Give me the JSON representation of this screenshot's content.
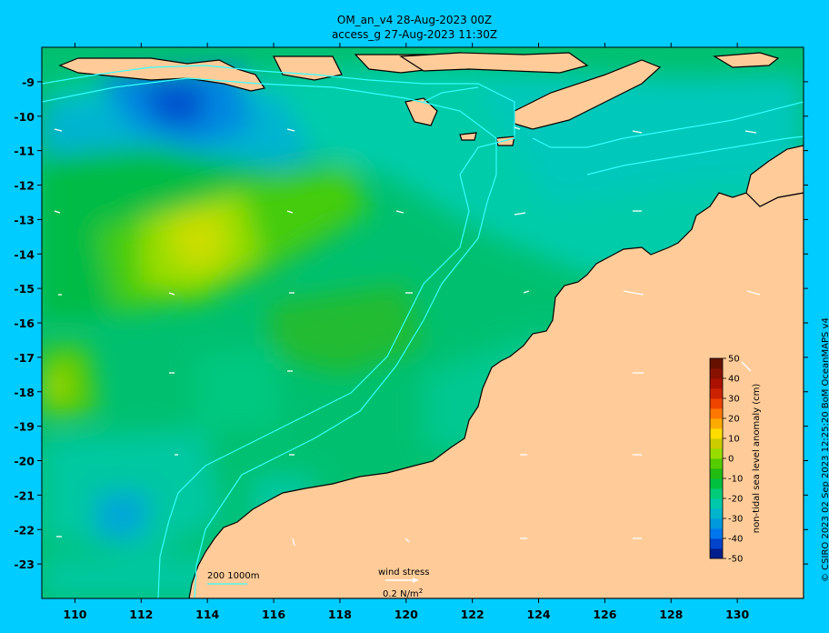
{
  "title_line1": "OM_an_v4  28-Aug-2023 00Z",
  "title_line2": "access_g 27-Aug-2023 11:30Z",
  "credit": "© CSIRO 2023   02 Sep 2023 12:25:20 BoM OceanMAPS v4",
  "colors": {
    "background": "#00ccff",
    "land": "#ffcc99",
    "contour": "#33ffff"
  },
  "x_axis": {
    "ticks": [
      {
        "value": 110,
        "label": "110"
      },
      {
        "value": 112,
        "label": "112"
      },
      {
        "value": 114,
        "label": "114"
      },
      {
        "value": 116,
        "label": "116"
      },
      {
        "value": 118,
        "label": "118"
      },
      {
        "value": 120,
        "label": "120"
      },
      {
        "value": 122,
        "label": "122"
      },
      {
        "value": 124,
        "label": "124"
      },
      {
        "value": 126,
        "label": "126"
      },
      {
        "value": 128,
        "label": "128"
      },
      {
        "value": 130,
        "label": "130"
      }
    ],
    "range": [
      109,
      132
    ]
  },
  "y_axis": {
    "ticks": [
      {
        "value": -9,
        "label": "-9"
      },
      {
        "value": -10,
        "label": "-10"
      },
      {
        "value": -11,
        "label": "-11"
      },
      {
        "value": -12,
        "label": "-12"
      },
      {
        "value": -13,
        "label": "-13"
      },
      {
        "value": -14,
        "label": "-14"
      },
      {
        "value": -15,
        "label": "-15"
      },
      {
        "value": -16,
        "label": "-16"
      },
      {
        "value": -17,
        "label": "-17"
      },
      {
        "value": -18,
        "label": "-18"
      },
      {
        "value": -19,
        "label": "-19"
      },
      {
        "value": -20,
        "label": "-20"
      },
      {
        "value": -21,
        "label": "-21"
      },
      {
        "value": -22,
        "label": "-22"
      },
      {
        "value": -23,
        "label": "-23"
      }
    ],
    "range": [
      -24,
      -8
    ]
  },
  "colorbar": {
    "label": "non-tidal sea level anomaly (cm)",
    "ticks": [
      "50",
      "40",
      "30",
      "20",
      "10",
      "0",
      "-10",
      "-20",
      "-30",
      "-40",
      "-50"
    ],
    "colors": [
      "#001f8c",
      "#0044cc",
      "#0077ee",
      "#0099dd",
      "#00b5cc",
      "#00c8aa",
      "#00cc77",
      "#00c040",
      "#22bb11",
      "#55cc00",
      "#99dd00",
      "#cccc00",
      "#ffdd00",
      "#ffaa00",
      "#ff7700",
      "#ee4400",
      "#cc2200",
      "#aa1100",
      "#881100",
      "#661100"
    ]
  },
  "legend": {
    "isobaths": "200  1000m",
    "wind_title": "wind stress",
    "wind_scale": "0.2 N/m",
    "wind_scale_sup": "2"
  }
}
